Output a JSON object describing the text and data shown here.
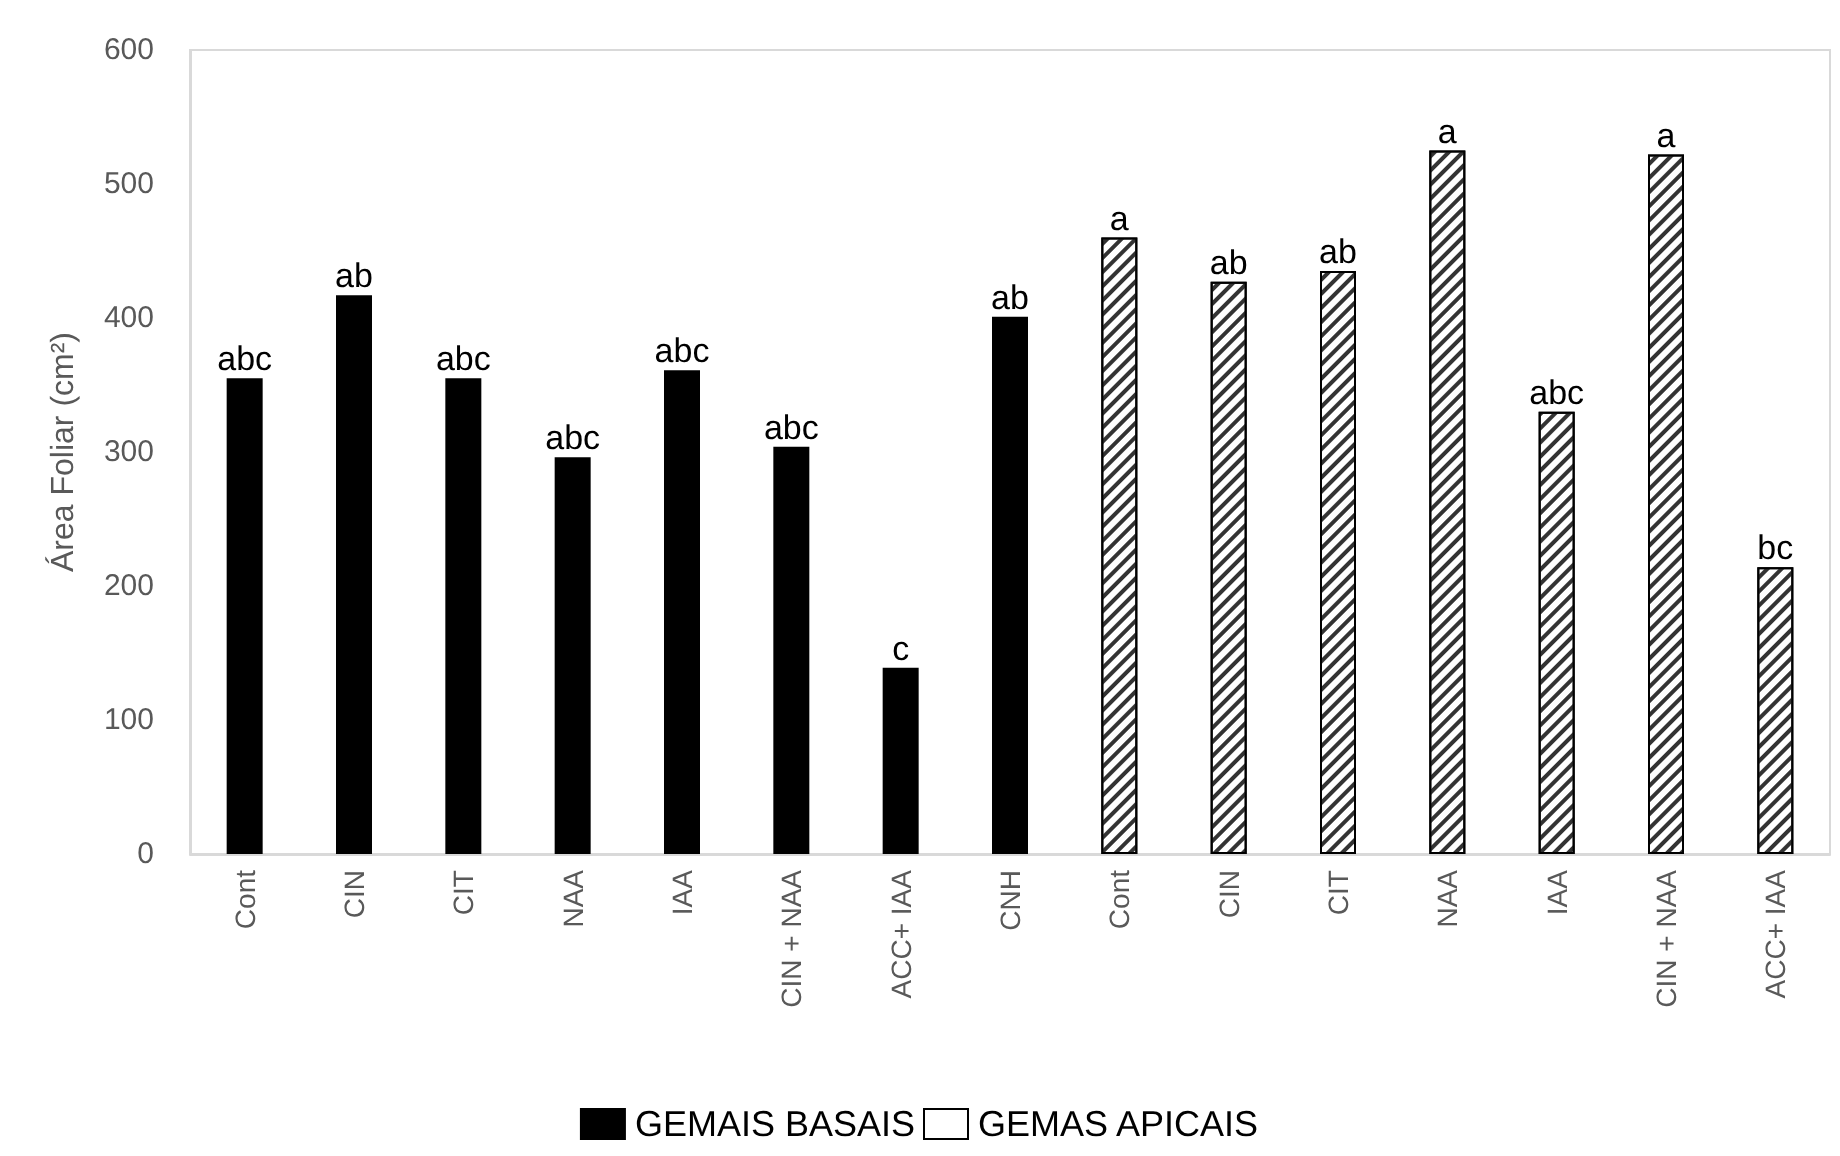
{
  "chart_data": {
    "type": "bar",
    "ylabel": "Área Foliar (cm²)",
    "categories": [
      "Cont",
      "CIN",
      "CIT",
      "NAA",
      "IAA",
      "CIN + NAA",
      "ACC+ IAA",
      "CNH",
      "Cont",
      "CIN",
      "CIT",
      "NAA",
      "IAA",
      "CIN + NAA",
      "ACC+ IAA"
    ],
    "series": [
      {
        "name": "GEMAIS BASAIS",
        "color": "#000000",
        "values": [
          355,
          417,
          355,
          296,
          361,
          304,
          139,
          401,
          null,
          null,
          null,
          null,
          null,
          null,
          null
        ],
        "value_labels": [
          "abc",
          "ab",
          "abc",
          "abc",
          "abc",
          "abc",
          "c",
          "ab",
          null,
          null,
          null,
          null,
          null,
          null,
          null
        ]
      },
      {
        "name": "GEMAS APICAIS",
        "color": "#ffffff",
        "values": [
          null,
          null,
          null,
          null,
          null,
          null,
          null,
          null,
          460,
          427,
          435,
          525,
          330,
          522,
          214
        ],
        "value_labels": [
          null,
          null,
          null,
          null,
          null,
          null,
          null,
          null,
          "a",
          "ab",
          "ab",
          "a",
          "abc",
          "a",
          "bc"
        ]
      }
    ],
    "ylim": [
      0,
      600
    ],
    "yticks": [
      0,
      100,
      200,
      300,
      400,
      500,
      600
    ],
    "grid": false,
    "legend": "bottom"
  }
}
